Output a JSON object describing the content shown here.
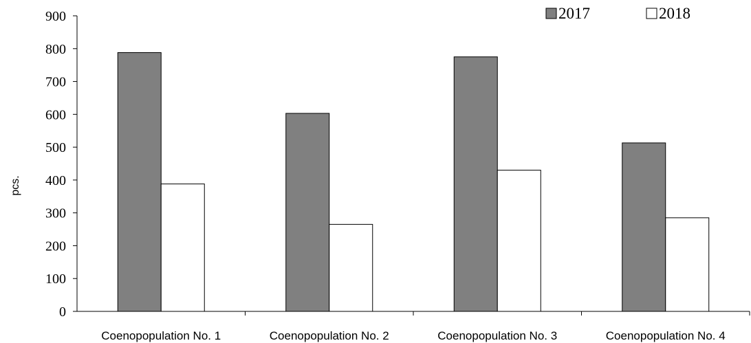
{
  "chart_data": {
    "type": "bar",
    "categories": [
      "Coenopopulation No. 1",
      "Coenopopulation No. 2",
      "Coenopopulation No. 3",
      "Coenopopulation No. 4"
    ],
    "series": [
      {
        "name": "2017",
        "values": [
          788,
          603,
          775,
          513
        ],
        "color": "#808080"
      },
      {
        "name": "2018",
        "values": [
          388,
          265,
          430,
          285
        ],
        "color": "#ffffff"
      }
    ],
    "title": "",
    "xlabel": "",
    "ylabel": "pcs.",
    "ylim": [
      0,
      900
    ],
    "yticks": [
      "0",
      "100",
      "200",
      "300",
      "400",
      "500",
      "600",
      "700",
      "800",
      "900"
    ],
    "grid": false,
    "legend": "top-right"
  }
}
